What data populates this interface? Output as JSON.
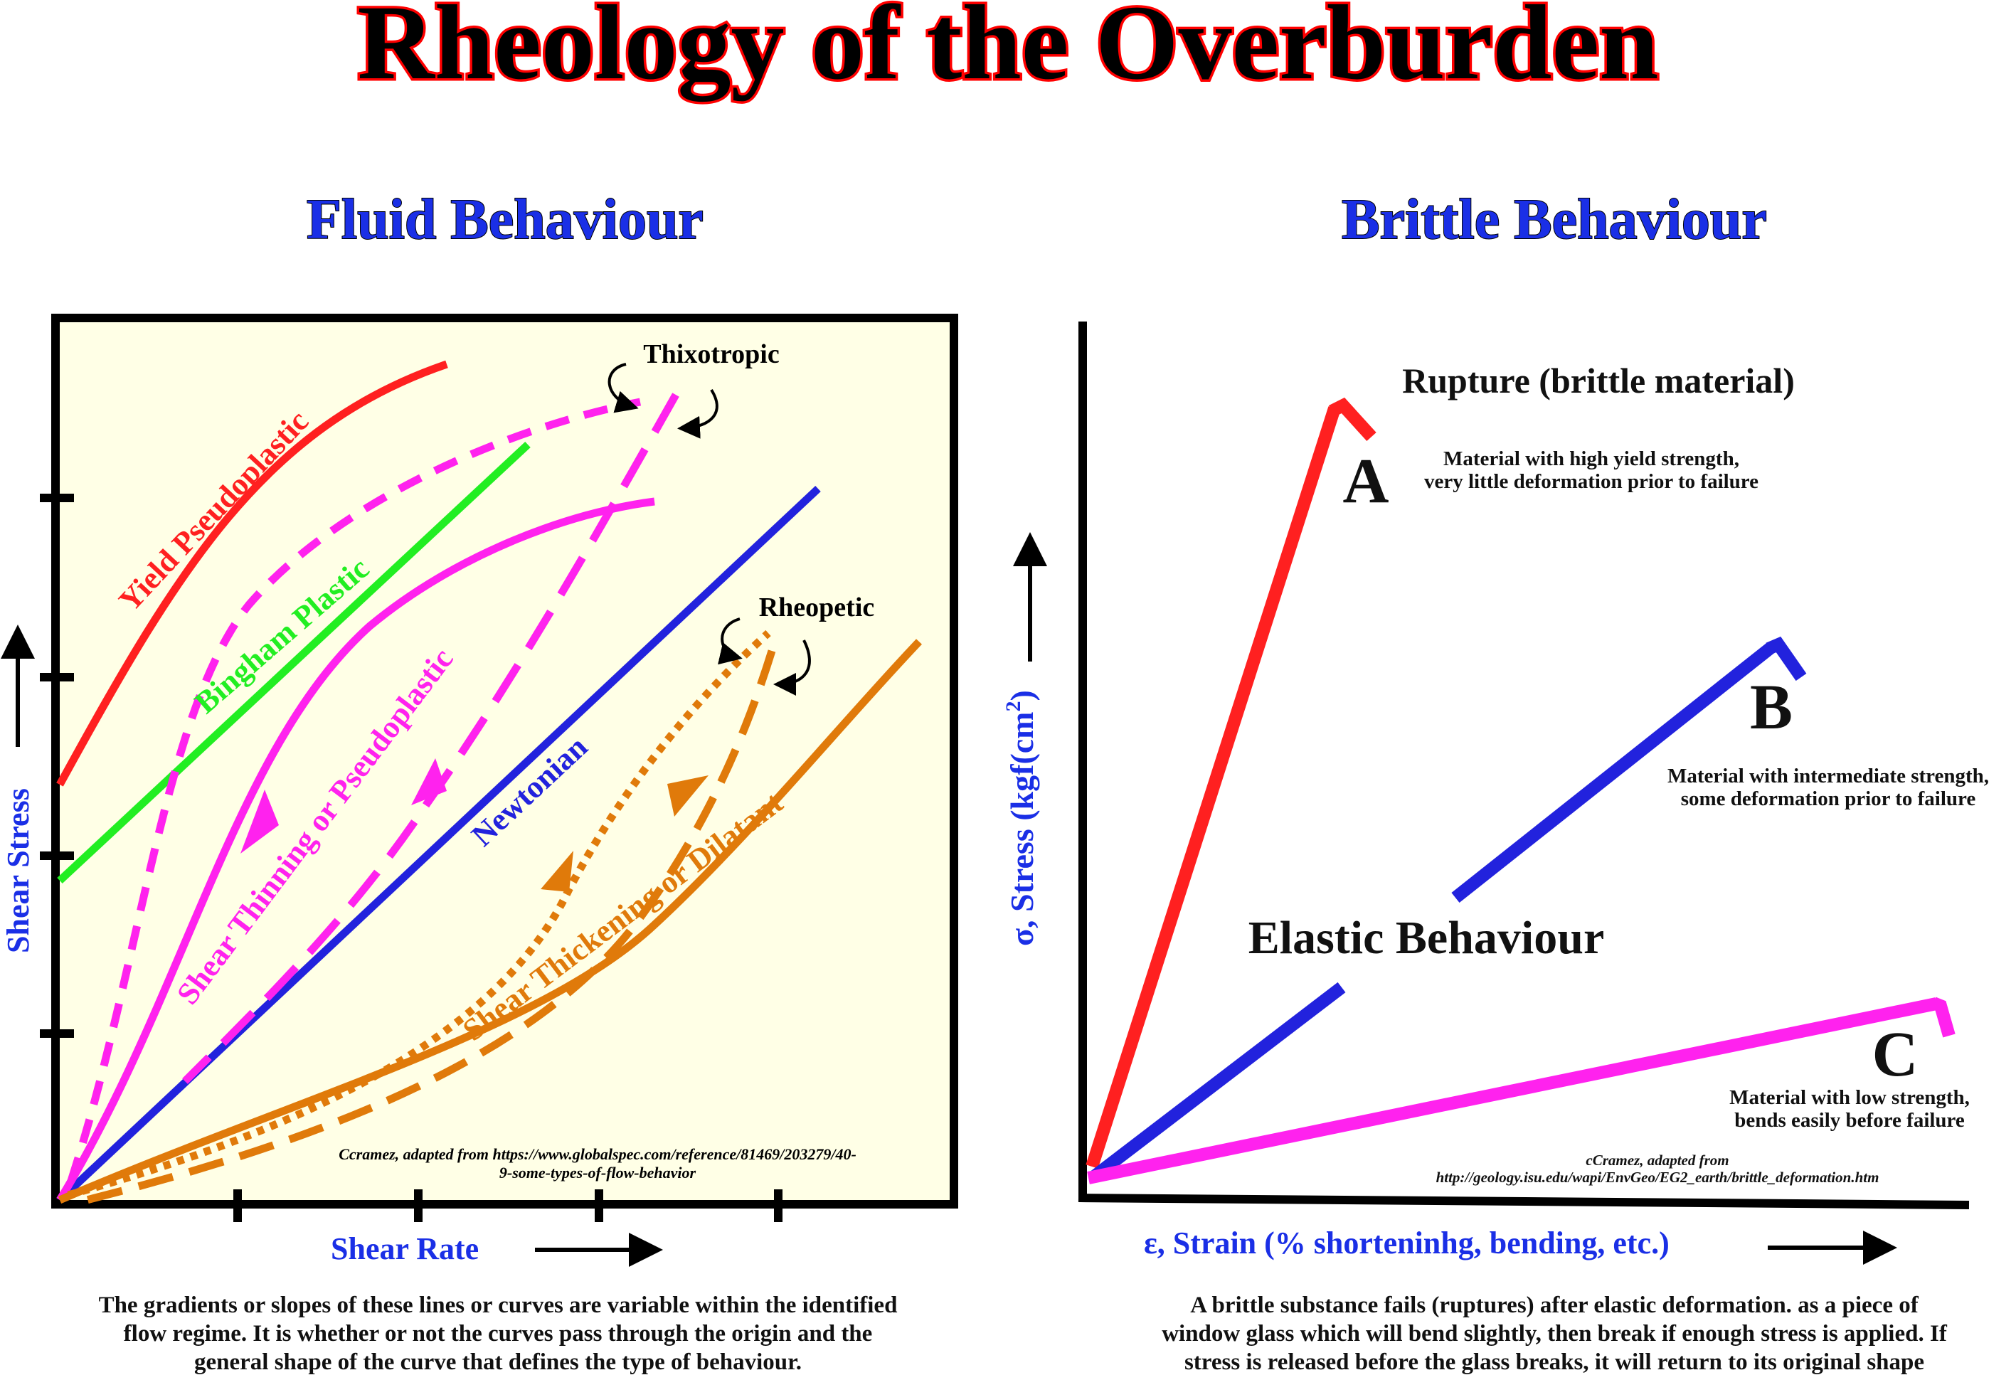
{
  "title": "Rheology of the Overburden",
  "colors": {
    "title_fill": "#000000",
    "title_stroke": "#ff0000",
    "heading_blue": "#1a2fe6",
    "panel_bg": "#ffffe6",
    "red": "#ff2020",
    "green": "#22ee22",
    "magenta": "#ff22ee",
    "blue": "#2222dd",
    "orange": "#e07a0a"
  },
  "fluid": {
    "heading": "Fluid Behaviour",
    "y_axis_label": "Shear Stress",
    "x_axis_label": "Shear Rate",
    "curves": {
      "yield_pseudoplastic": "Yield Pseudoplastic",
      "bingham_plastic": "Bingham Plastic",
      "shear_thinning": "Shear Thinning or Pseudoplastic",
      "newtonian": "Newtonian",
      "shear_thickening": "Shear Thickening or Dilatant"
    },
    "callouts": {
      "thixotropic": "Thixotropic",
      "rheopetic": "Rheopetic"
    },
    "credit_line1": "Ccramez, adapted from https://www.globalspec.com/reference/81469/203279/40-",
    "credit_line2": "9-some-types-of-flow-behavior",
    "caption_line1": "The gradients or slopes of these lines or curves are variable within the identified",
    "caption_line2": "flow regime. It is whether or not the curves pass through the origin and the",
    "caption_line3": "general shape of the curve that defines the type of behaviour."
  },
  "brittle": {
    "heading": "Brittle  Behaviour",
    "y_axis_label": "σ, Stress (kgf(cm",
    "y_axis_sup": "2",
    "y_axis_close": ")",
    "x_axis_label": "ε, Strain (% shorteninhg, bending, etc.)",
    "rupture_label": "Rupture (brittle material)",
    "elastic_label": "Elastic Behaviour",
    "materials": [
      {
        "letter": "A",
        "line1": "Material  with high yield strength,",
        "line2": "very little deformation prior to failure"
      },
      {
        "letter": "B",
        "line1": "Material  with intermediate strength,",
        "line2": "some deformation prior to failure"
      },
      {
        "letter": "C",
        "line1": "Material  with low strength,",
        "line2": "bends easily before failure"
      }
    ],
    "credit_line1": "cCramez, adapted from",
    "credit_line2": "http://geology.isu.edu/wapi/EnvGeo/EG2_earth/brittle_deformation.htm",
    "caption_line1": "A brittle substance fails (ruptures) after elastic deformation. as a piece of",
    "caption_line2": "window glass which will bend slightly, then break if enough stress is applied. If",
    "caption_line3": "stress is released before the glass breaks, it will return to its original shape"
  }
}
